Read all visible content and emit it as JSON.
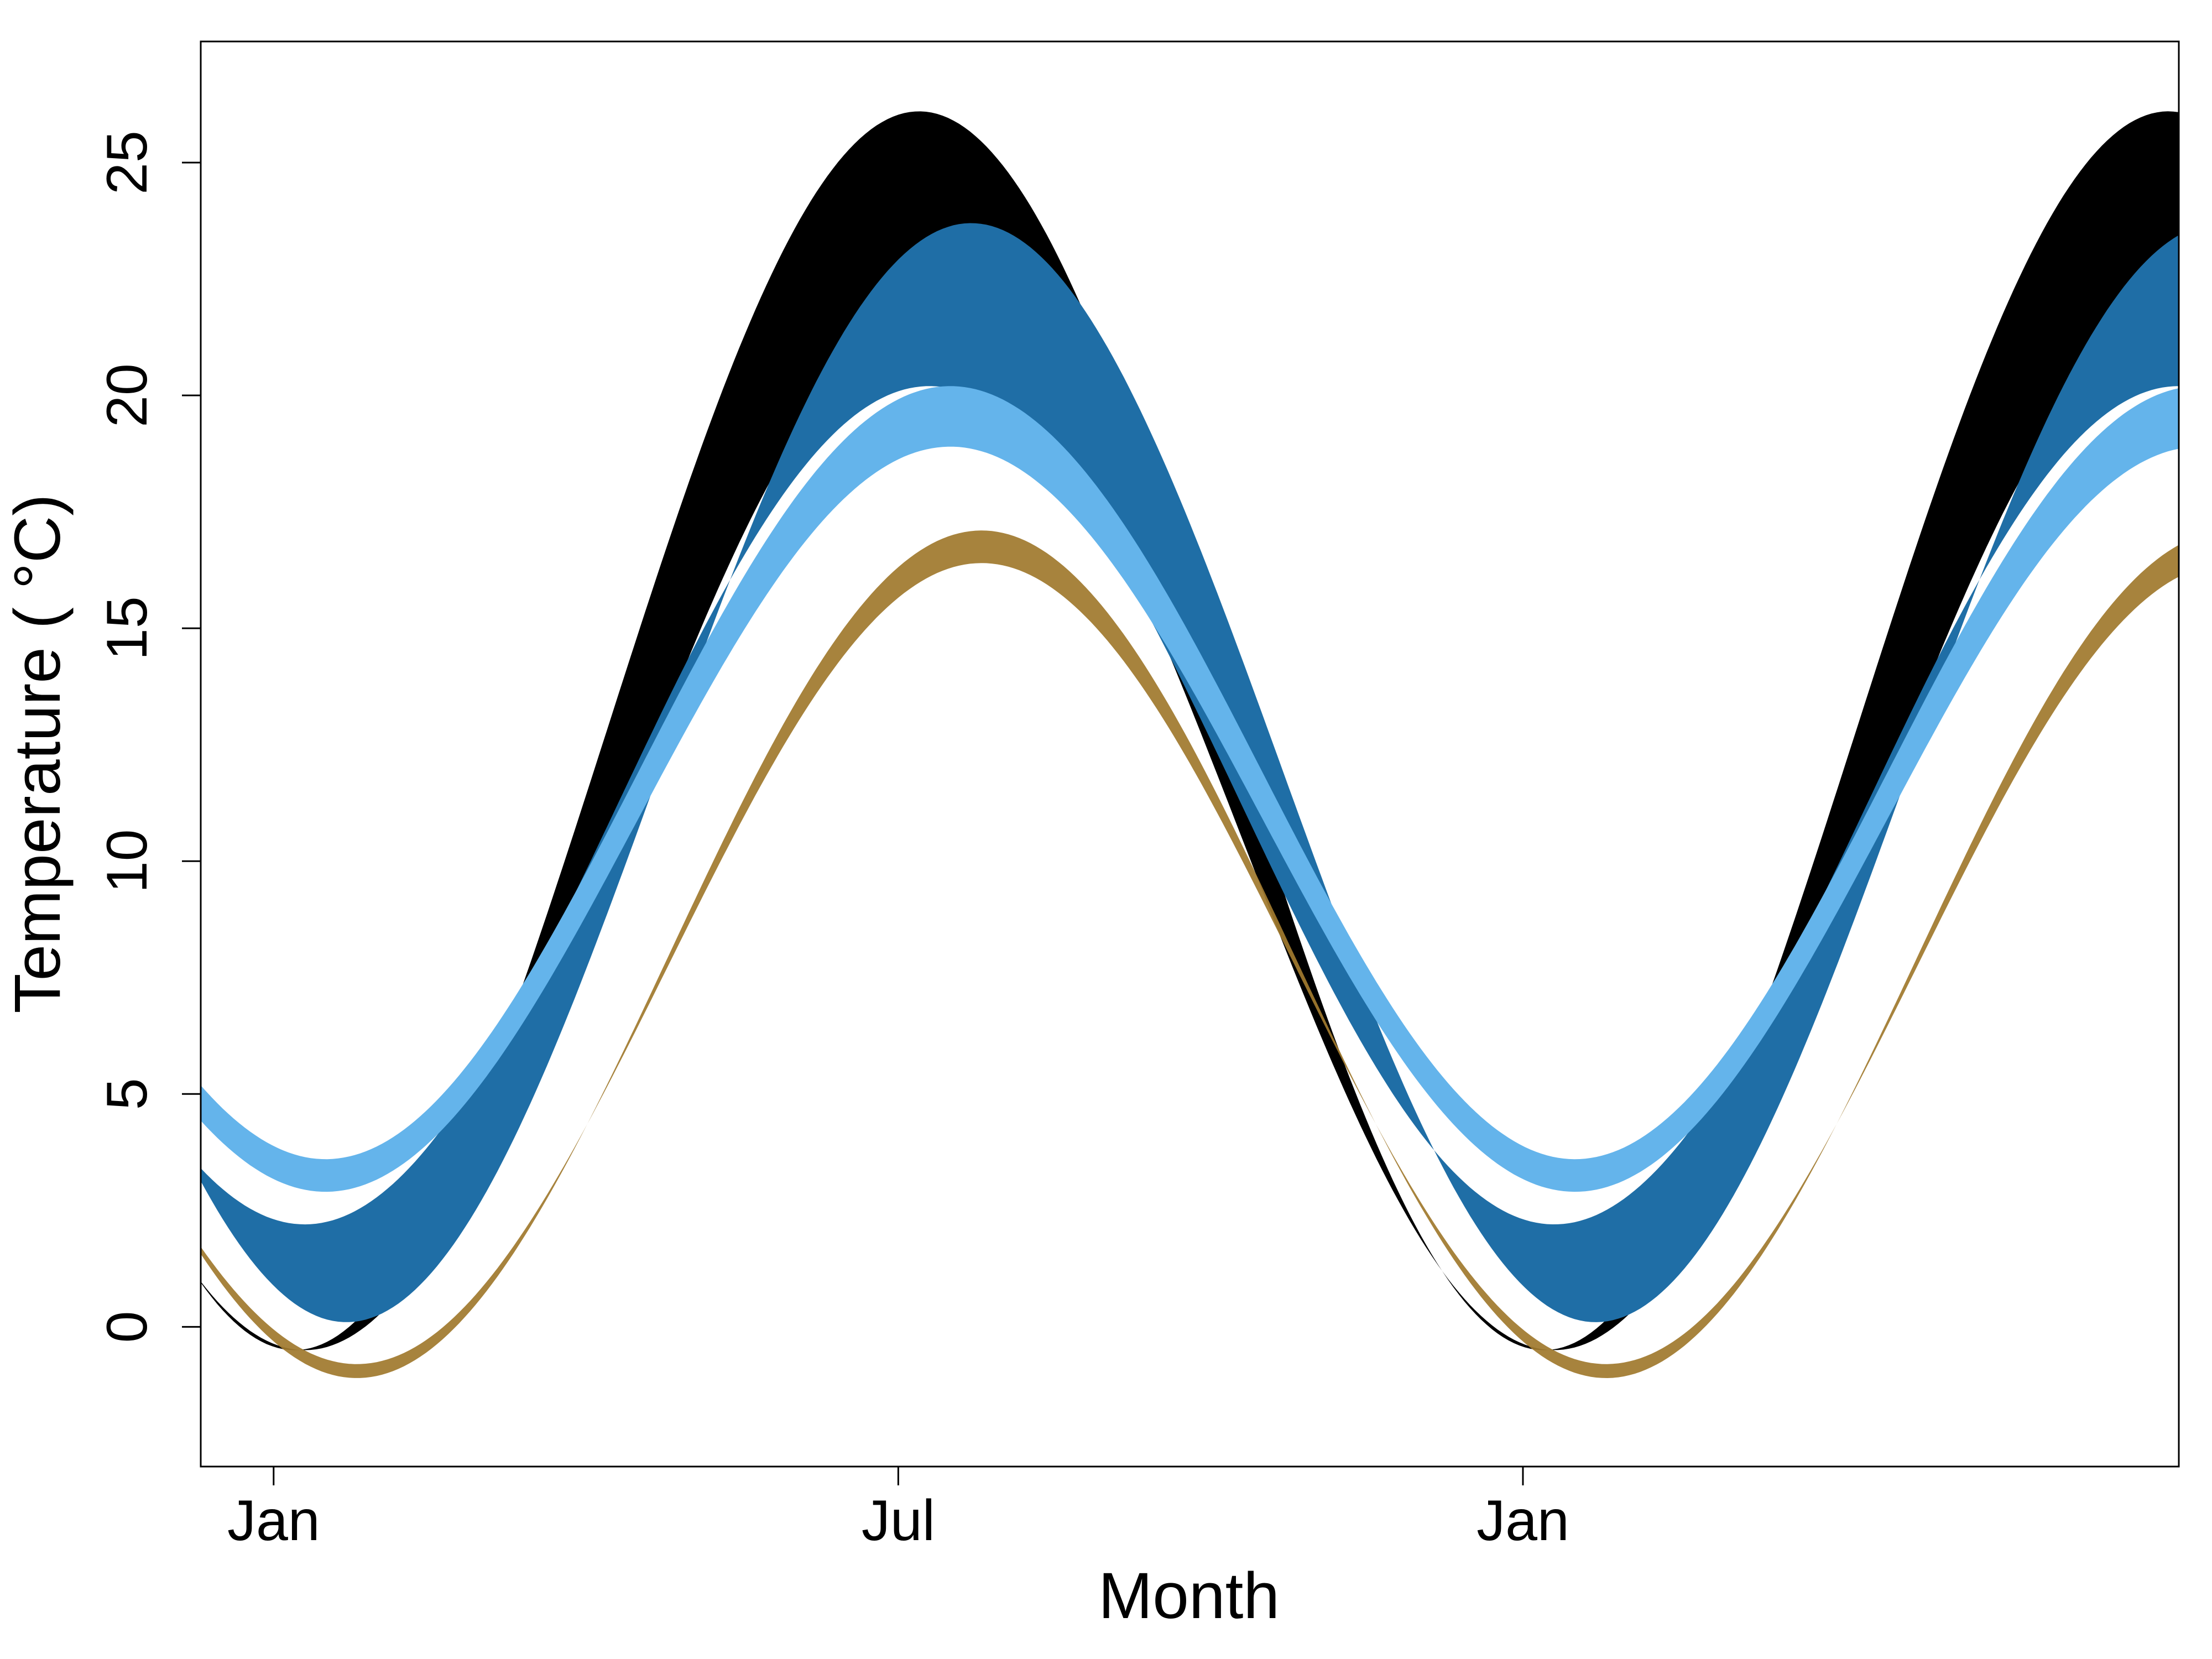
{
  "chart_data": {
    "type": "area",
    "title": "",
    "xlabel": "Month",
    "ylabel": "Temperature ( °C)",
    "x_ticks": [
      {
        "label": "Jan",
        "month": 0
      },
      {
        "label": "Jul",
        "month": 6
      },
      {
        "label": "Jan",
        "month": 12
      }
    ],
    "y_ticks": [
      0,
      5,
      10,
      15,
      20,
      25
    ],
    "xlim": [
      -0.7,
      18.3
    ],
    "ylim": [
      -3,
      27.6
    ],
    "grid": false,
    "legend": "none",
    "x_unit": "month",
    "series": [
      {
        "color": "#000000",
        "opacity": 1.0,
        "mean": 12.0,
        "lower_amp": 11.0,
        "upper_amp": 13.3,
        "lower_peak_month": 6.3,
        "upper_peak_month": 6.2,
        "lower_offset": -1.5,
        "upper_offset": 0.8
      },
      {
        "color": "#1f6ea6",
        "opacity": 1.0,
        "mean": 11.9,
        "lower_amp": 9.0,
        "upper_amp": 11.8,
        "lower_peak_month": 6.3,
        "upper_peak_month": 6.7,
        "lower_offset": -0.7,
        "upper_offset": 0.0
      },
      {
        "color": "#64b4eb",
        "opacity": 1.0,
        "mean": 11.6,
        "lower_amp": 8.0,
        "upper_amp": 8.3,
        "lower_peak_month": 6.5,
        "upper_peak_month": 6.5,
        "lower_offset": -0.7,
        "upper_offset": 0.3
      },
      {
        "color": "#a07a2e",
        "opacity": 0.93,
        "mean": 8.0,
        "lower_amp": 8.6,
        "upper_amp": 9.1,
        "lower_peak_month": 6.8,
        "upper_peak_month": 6.8,
        "lower_offset": -0.2,
        "upper_offset": 0.0
      }
    ]
  }
}
